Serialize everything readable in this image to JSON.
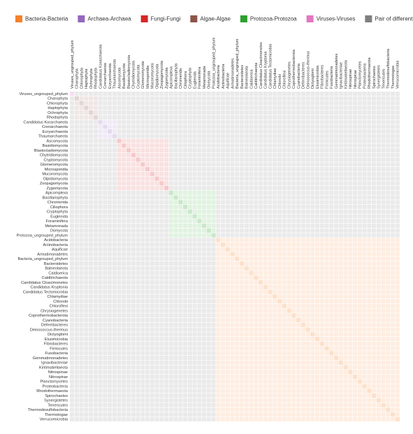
{
  "chart_data": {
    "type": "heatmap",
    "series": [
      {
        "name": "Bacteria-Bacteria",
        "color": "#f5822a"
      },
      {
        "name": "Archaea-Archaea",
        "color": "#9467bd"
      },
      {
        "name": "Fungi-Fungi",
        "color": "#d62728"
      },
      {
        "name": "Algae-Algae",
        "color": "#8c564b"
      },
      {
        "name": "Protozoa-Protozoa",
        "color": "#2ca02c"
      },
      {
        "name": "Viruses-Viruses",
        "color": "#e377c2"
      },
      {
        "name": "Pair of different microbial groups",
        "color": "#7f7f7f"
      }
    ],
    "categories": [
      "Viruses_ungrouped_phylum",
      "Charophyta",
      "Chlorophyta",
      "Haptophyta",
      "Ochrophyta",
      "Rhodophyta",
      "Candidatus Korarchaeota",
      "Crenarchaeota",
      "Euryarchaeota",
      "Thaumarchaeota",
      "Ascomycota",
      "Basidiomycota",
      "Blastocladiomycota",
      "Chytridiomycota",
      "Cryptomycota",
      "Glomeromycota",
      "Microsporidia",
      "Mucoromycota",
      "Olpidiomycota",
      "Zoopagomycota",
      "Zygomycota",
      "Apicomplexa",
      "Bacillariophyta",
      "Chromerida",
      "Ciliophora",
      "Cryptophyta",
      "Euglenida",
      "Foraminifera",
      "Metamonada",
      "Oomycota",
      "Protozoa_ungrouped_phylum",
      "Acidobacteria",
      "Actinobacteria",
      "Aquificae",
      "Armatimonadetes",
      "Bacteria_ungrouped_phylum",
      "Bacteroidetes",
      "Balneolaeota",
      "Caldiserica",
      "Calditrichaeota",
      "Candidatus Cloacimonetes",
      "Candidatus Kryptonia",
      "Candidatus Tectomicrobia",
      "Chlamydiae",
      "Chlorobi",
      "Chloroflexi",
      "Chrysiogenetes",
      "Coprothermobacterota",
      "Cyanobacteria",
      "Deferribacteres",
      "Deinococcus-thermus",
      "Dictyoglomi",
      "Elusimicrobia",
      "Fibrobacteres",
      "Firmicutes",
      "Fusobacteria",
      "Gemmatimonadetes",
      "Ignavibacteriae",
      "Kiritimatiellaeota",
      "Nitrospinae",
      "Nitrospirae",
      "Planctomycetes",
      "Proteobacteria",
      "Rhodothermaeota",
      "Spirochaetes",
      "Synergistetes",
      "Tenericutes",
      "Thermodesulfobacteria",
      "Thermotogae",
      "Verrucomicrobia"
    ],
    "category_groups": [
      "Viruses-Viruses",
      "Algae-Algae",
      "Algae-Algae",
      "Algae-Algae",
      "Algae-Algae",
      "Algae-Algae",
      "Archaea-Archaea",
      "Archaea-Archaea",
      "Archaea-Archaea",
      "Archaea-Archaea",
      "Fungi-Fungi",
      "Fungi-Fungi",
      "Fungi-Fungi",
      "Fungi-Fungi",
      "Fungi-Fungi",
      "Fungi-Fungi",
      "Fungi-Fungi",
      "Fungi-Fungi",
      "Fungi-Fungi",
      "Fungi-Fungi",
      "Fungi-Fungi",
      "Protozoa-Protozoa",
      "Protozoa-Protozoa",
      "Protozoa-Protozoa",
      "Protozoa-Protozoa",
      "Protozoa-Protozoa",
      "Protozoa-Protozoa",
      "Protozoa-Protozoa",
      "Protozoa-Protozoa",
      "Protozoa-Protozoa",
      "Protozoa-Protozoa",
      "Bacteria-Bacteria",
      "Bacteria-Bacteria",
      "Bacteria-Bacteria",
      "Bacteria-Bacteria",
      "Bacteria-Bacteria",
      "Bacteria-Bacteria",
      "Bacteria-Bacteria",
      "Bacteria-Bacteria",
      "Bacteria-Bacteria",
      "Bacteria-Bacteria",
      "Bacteria-Bacteria",
      "Bacteria-Bacteria",
      "Bacteria-Bacteria",
      "Bacteria-Bacteria",
      "Bacteria-Bacteria",
      "Bacteria-Bacteria",
      "Bacteria-Bacteria",
      "Bacteria-Bacteria",
      "Bacteria-Bacteria",
      "Bacteria-Bacteria",
      "Bacteria-Bacteria",
      "Bacteria-Bacteria",
      "Bacteria-Bacteria",
      "Bacteria-Bacteria",
      "Bacteria-Bacteria",
      "Bacteria-Bacteria",
      "Bacteria-Bacteria",
      "Bacteria-Bacteria",
      "Bacteria-Bacteria",
      "Bacteria-Bacteria",
      "Bacteria-Bacteria",
      "Bacteria-Bacteria",
      "Bacteria-Bacteria",
      "Bacteria-Bacteria",
      "Bacteria-Bacteria",
      "Bacteria-Bacteria",
      "Bacteria-Bacteria",
      "Bacteria-Bacteria",
      "Bacteria-Bacteria"
    ]
  }
}
